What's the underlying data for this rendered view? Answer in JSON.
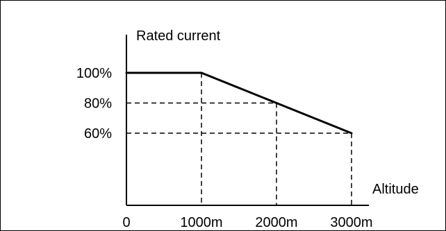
{
  "chart_data": {
    "type": "line",
    "title": "",
    "ylabel": "Rated current",
    "xlabel": "Altitude",
    "x_origin_label": "0",
    "x_ticks": [
      {
        "value": 1000,
        "label": "1000m"
      },
      {
        "value": 2000,
        "label": "2000m"
      },
      {
        "value": 3000,
        "label": "3000m"
      }
    ],
    "y_ticks": [
      {
        "value": 100,
        "label": "100%"
      },
      {
        "value": 80,
        "label": "80%"
      },
      {
        "value": 60,
        "label": "60%"
      }
    ],
    "xlim": [
      0,
      3400
    ],
    "ylim": [
      0,
      100
    ],
    "series": [
      {
        "x": [
          0,
          1000,
          2000,
          3000
        ],
        "y": [
          100,
          100,
          80,
          60
        ]
      }
    ],
    "grid": false,
    "guide_lines": "dashed",
    "legend": "none",
    "colors": {
      "line": "#000000",
      "axes": "#000000",
      "frame": "#000000"
    }
  }
}
